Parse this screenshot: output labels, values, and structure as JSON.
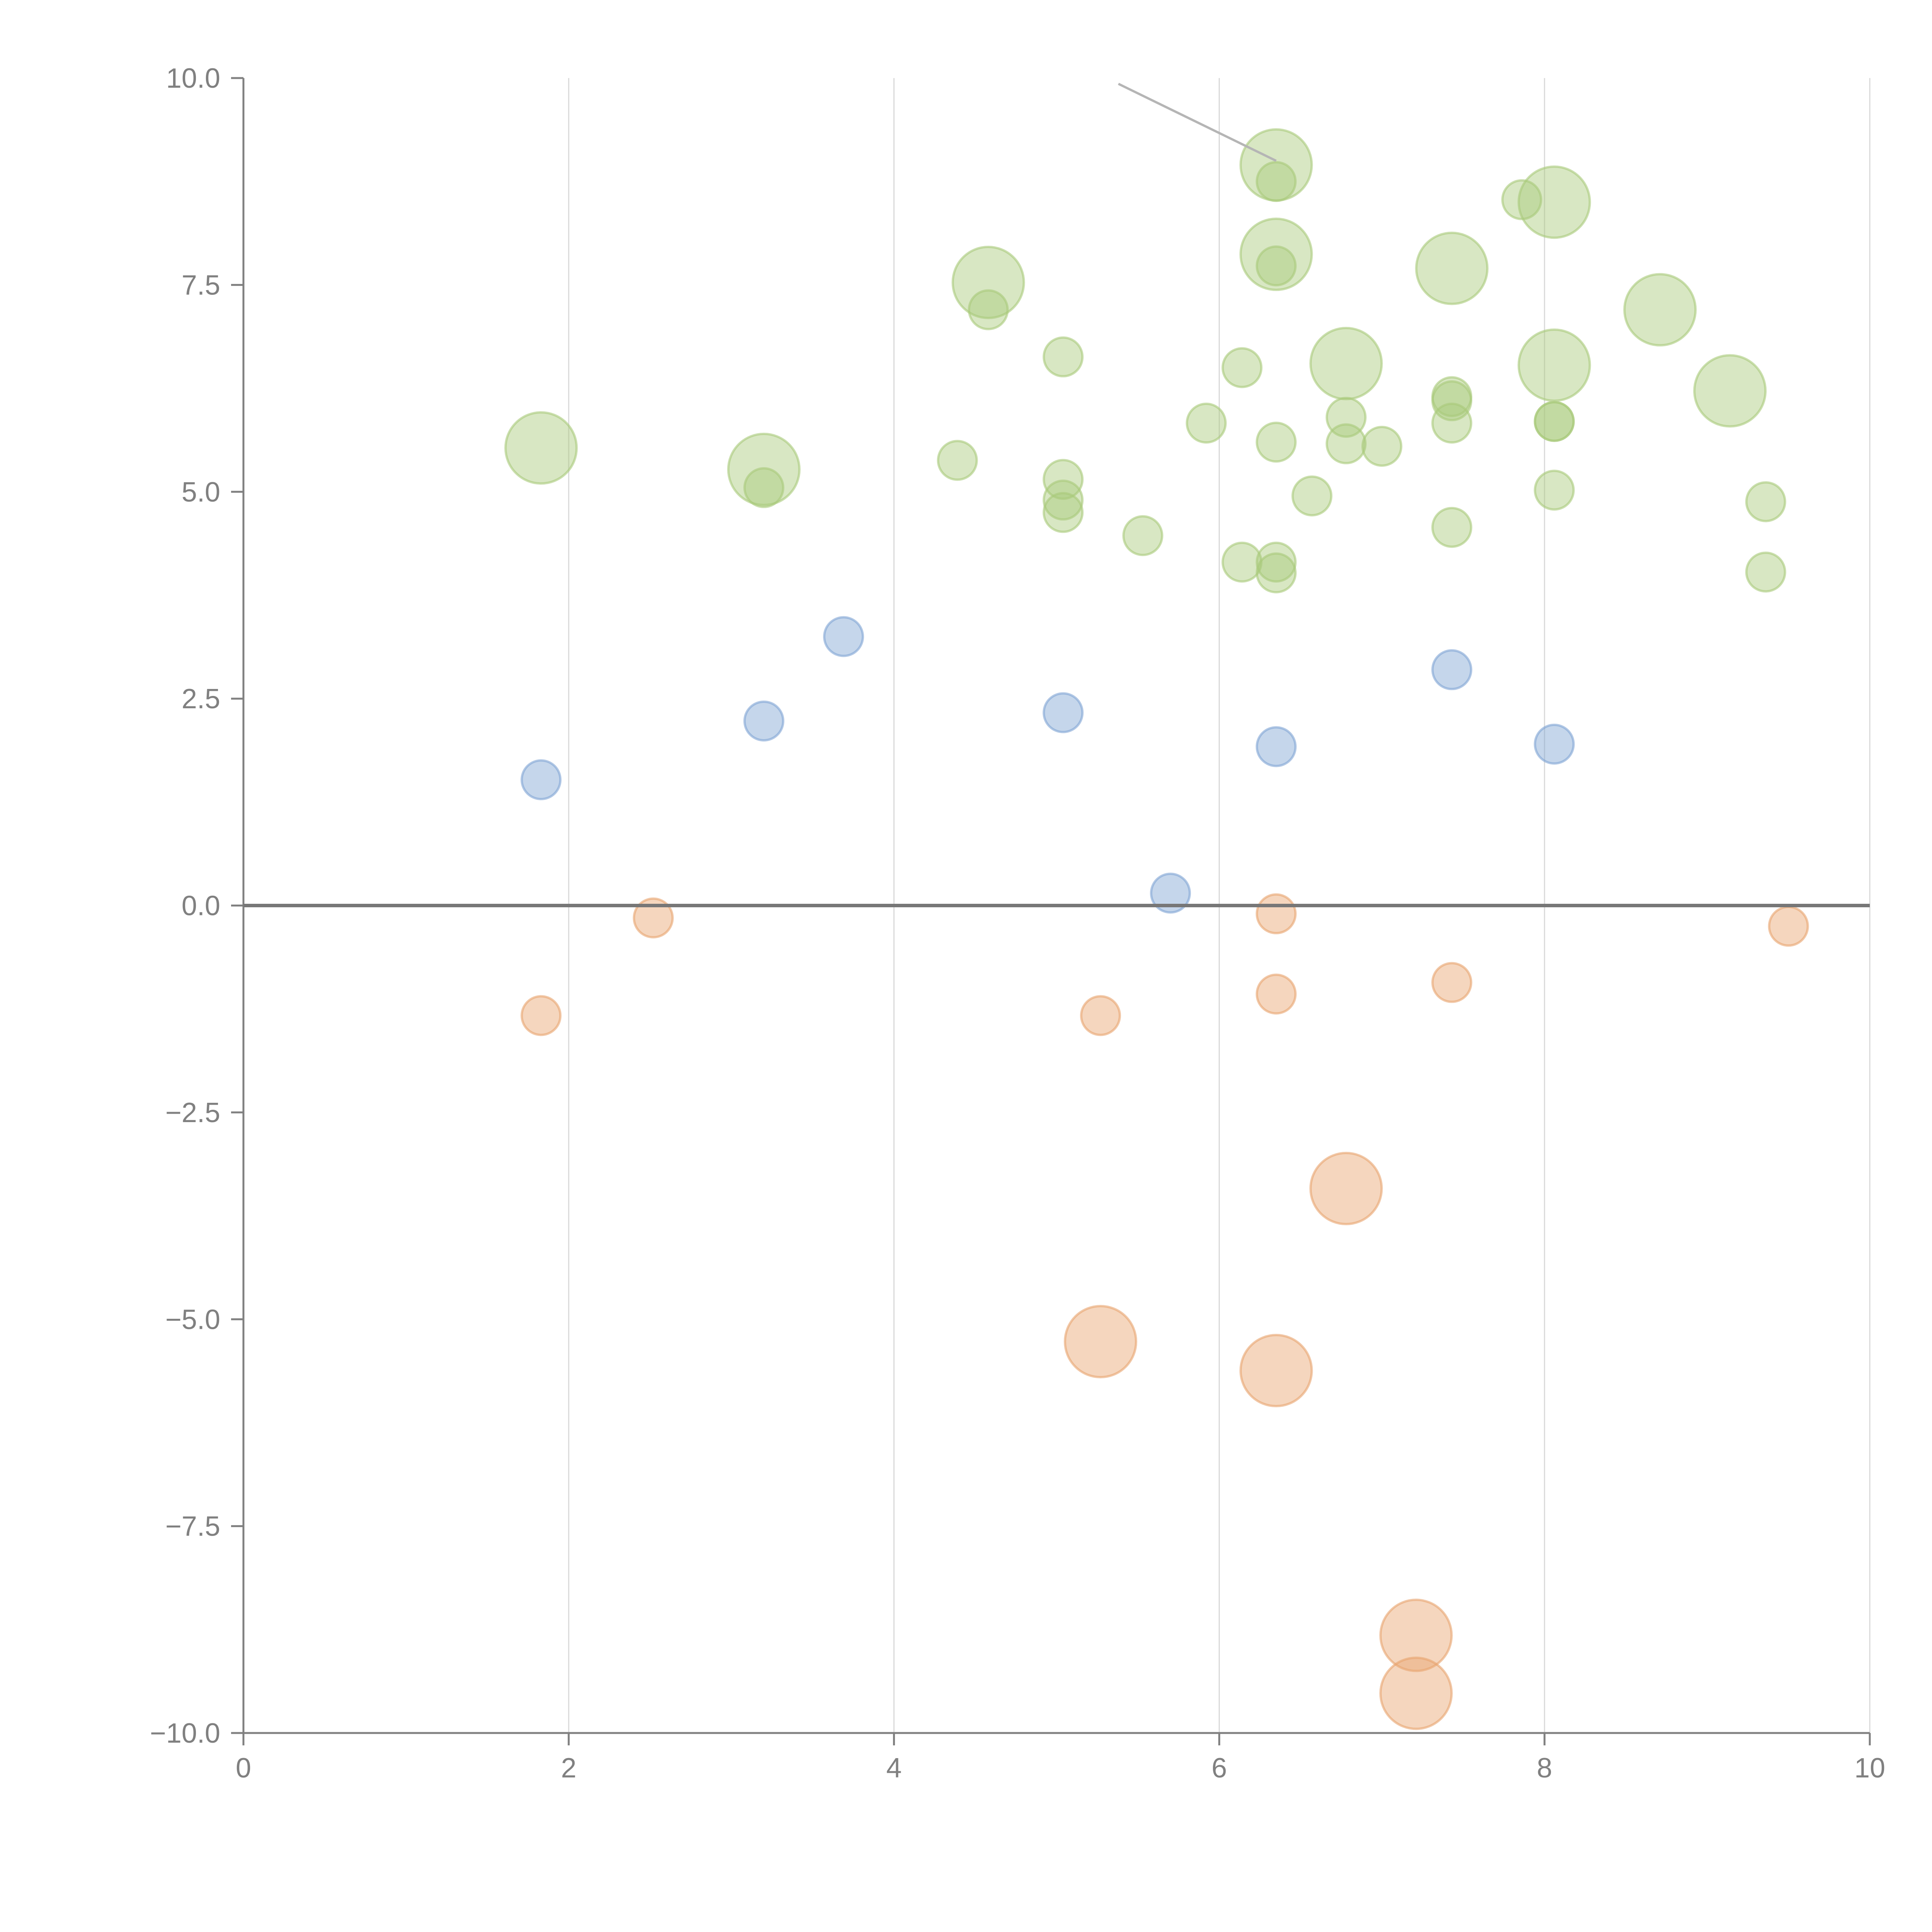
{
  "chart_data": {
    "type": "scatter",
    "title": "",
    "xlabel": "",
    "ylabel": "",
    "xlim": [
      0,
      10
    ],
    "ylim": [
      -10,
      10
    ],
    "grid": "vertical",
    "x_ticks": [
      "0",
      "2",
      "4",
      "6",
      "8",
      "10"
    ],
    "x_tick_values": [
      0,
      2,
      4,
      6,
      8,
      10
    ],
    "y_ticks": [
      "10.0",
      "7.5",
      "5.0",
      "2.5",
      "0.0",
      "−2.5",
      "−5.0",
      "−7.5",
      "−10.0"
    ],
    "y_tick_values": [
      10,
      7.5,
      5,
      2.5,
      0,
      -2.5,
      -5,
      -7.5,
      -10
    ],
    "colors": {
      "green": "#a9c97a",
      "blue": "#7fa3d3",
      "orange": "#e8a36e",
      "axis": "#808080",
      "grid": "#d9d9d9"
    },
    "series": [
      {
        "name": "green",
        "color": "#a9c97a",
        "points": [
          {
            "x": 1.83,
            "y": 5.53,
            "size": "large"
          },
          {
            "x": 3.2,
            "y": 5.27,
            "size": "large"
          },
          {
            "x": 3.2,
            "y": 5.05,
            "size": "small"
          },
          {
            "x": 4.58,
            "y": 7.53,
            "size": "large"
          },
          {
            "x": 4.58,
            "y": 7.2,
            "size": "small"
          },
          {
            "x": 4.39,
            "y": 5.38,
            "size": "small"
          },
          {
            "x": 5.04,
            "y": 6.63,
            "size": "small"
          },
          {
            "x": 5.04,
            "y": 5.15,
            "size": "small"
          },
          {
            "x": 5.04,
            "y": 4.9,
            "size": "small"
          },
          {
            "x": 5.04,
            "y": 4.75,
            "size": "small"
          },
          {
            "x": 5.53,
            "y": 4.47,
            "size": "small"
          },
          {
            "x": 5.92,
            "y": 5.83,
            "size": "small"
          },
          {
            "x": 6.14,
            "y": 6.5,
            "size": "small"
          },
          {
            "x": 6.14,
            "y": 4.15,
            "size": "small"
          },
          {
            "x": 6.35,
            "y": 8.95,
            "size": "large"
          },
          {
            "x": 6.35,
            "y": 8.75,
            "size": "small"
          },
          {
            "x": 6.35,
            "y": 7.87,
            "size": "large"
          },
          {
            "x": 6.35,
            "y": 7.73,
            "size": "small"
          },
          {
            "x": 6.35,
            "y": 5.6,
            "size": "small"
          },
          {
            "x": 6.35,
            "y": 4.15,
            "size": "small"
          },
          {
            "x": 6.35,
            "y": 4.02,
            "size": "small"
          },
          {
            "x": 6.57,
            "y": 4.95,
            "size": "small"
          },
          {
            "x": 6.78,
            "y": 6.55,
            "size": "large"
          },
          {
            "x": 6.78,
            "y": 5.9,
            "size": "small"
          },
          {
            "x": 6.78,
            "y": 5.58,
            "size": "small"
          },
          {
            "x": 7.0,
            "y": 5.55,
            "size": "small"
          },
          {
            "x": 7.43,
            "y": 7.7,
            "size": "large"
          },
          {
            "x": 7.43,
            "y": 6.15,
            "size": "small"
          },
          {
            "x": 7.43,
            "y": 6.1,
            "size": "small"
          },
          {
            "x": 7.43,
            "y": 5.83,
            "size": "small"
          },
          {
            "x": 7.43,
            "y": 4.57,
            "size": "small"
          },
          {
            "x": 7.86,
            "y": 8.53,
            "size": "small"
          },
          {
            "x": 8.06,
            "y": 8.5,
            "size": "large"
          },
          {
            "x": 8.06,
            "y": 6.53,
            "size": "large"
          },
          {
            "x": 8.06,
            "y": 5.85,
            "size": "small"
          },
          {
            "x": 8.06,
            "y": 5.85,
            "size": "small"
          },
          {
            "x": 8.06,
            "y": 5.02,
            "size": "small"
          },
          {
            "x": 8.71,
            "y": 7.2,
            "size": "large"
          },
          {
            "x": 9.14,
            "y": 6.22,
            "size": "large"
          },
          {
            "x": 9.36,
            "y": 4.88,
            "size": "small"
          },
          {
            "x": 9.36,
            "y": 4.03,
            "size": "small"
          }
        ]
      },
      {
        "name": "blue",
        "color": "#7fa3d3",
        "points": [
          {
            "x": 1.83,
            "y": 1.52,
            "size": "small"
          },
          {
            "x": 3.2,
            "y": 2.23,
            "size": "small"
          },
          {
            "x": 3.69,
            "y": 3.25,
            "size": "small"
          },
          {
            "x": 5.04,
            "y": 2.33,
            "size": "small"
          },
          {
            "x": 5.7,
            "y": 0.15,
            "size": "small"
          },
          {
            "x": 6.35,
            "y": 1.92,
            "size": "small"
          },
          {
            "x": 7.43,
            "y": 2.85,
            "size": "small"
          },
          {
            "x": 8.06,
            "y": 1.95,
            "size": "small"
          }
        ]
      },
      {
        "name": "orange",
        "color": "#e8a36e",
        "points": [
          {
            "x": 1.83,
            "y": -1.33,
            "size": "small"
          },
          {
            "x": 2.52,
            "y": -0.15,
            "size": "small"
          },
          {
            "x": 5.27,
            "y": -1.33,
            "size": "small"
          },
          {
            "x": 5.27,
            "y": -5.27,
            "size": "large"
          },
          {
            "x": 6.35,
            "y": -0.1,
            "size": "small"
          },
          {
            "x": 6.35,
            "y": -1.07,
            "size": "small"
          },
          {
            "x": 6.35,
            "y": -5.62,
            "size": "large"
          },
          {
            "x": 6.78,
            "y": -3.42,
            "size": "large"
          },
          {
            "x": 7.21,
            "y": -8.82,
            "size": "large"
          },
          {
            "x": 7.21,
            "y": -9.52,
            "size": "large"
          },
          {
            "x": 7.43,
            "y": -0.93,
            "size": "small"
          },
          {
            "x": 9.5,
            "y": -0.25,
            "size": "small"
          }
        ]
      }
    ],
    "annotation_line": {
      "from": {
        "x": 5.38,
        "y": 9.93
      },
      "to": {
        "x": 6.35,
        "y": 9.0
      }
    }
  }
}
